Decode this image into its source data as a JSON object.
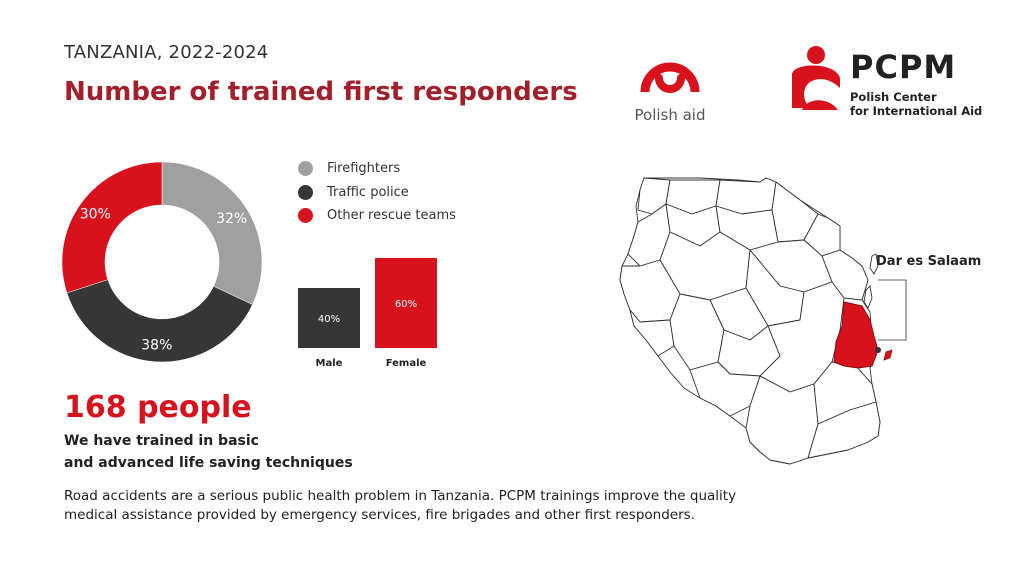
{
  "header": {
    "subtitle": "TANZANIA, 2022-2024",
    "title": "Number of trained first responders"
  },
  "logos": {
    "polish_aid": "Polish aid",
    "pcpm_name": "PCPM",
    "pcpm_sub1": "Polish Center",
    "pcpm_sub2": "for International Aid",
    "brand_red": "#d8121c"
  },
  "chart_data": [
    {
      "type": "pie",
      "donut": true,
      "categories": [
        "Firefighters",
        "Traffic police",
        "Other rescue teams"
      ],
      "values": [
        32,
        38,
        30
      ],
      "labels": [
        "32%",
        "38%",
        "30%"
      ],
      "colors": [
        "#a0a0a0",
        "#363636",
        "#d8121c"
      ],
      "legend": "right"
    },
    {
      "type": "bar",
      "categories": [
        "Male",
        "Female"
      ],
      "values": [
        40,
        60
      ],
      "labels": [
        "40%",
        "60%"
      ],
      "colors": [
        "#363636",
        "#d8121c"
      ]
    }
  ],
  "stats": {
    "count": "168 people",
    "lead_line1": "We have trained in basic",
    "lead_line2": "and advanced life saving techniques"
  },
  "body": {
    "line1": "Road accidents are a serious public health problem in Tanzania. PCPM trainings improve the quality",
    "line2": "medical assistance provided by emergency services, fire brigades and other first responders."
  },
  "map": {
    "highlight_label": "Dar es Salaam",
    "highlight_color": "#d8121c"
  }
}
